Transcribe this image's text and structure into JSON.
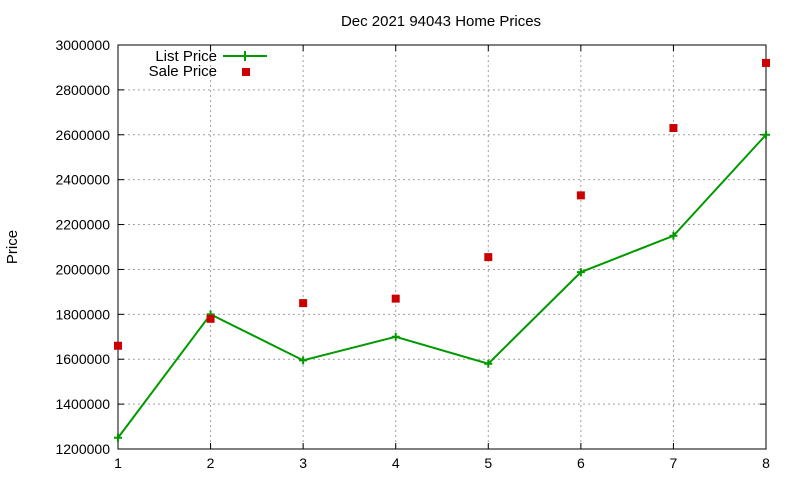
{
  "chart_data": {
    "type": "line",
    "title": "Dec 2021 94043 Home Prices",
    "xlabel": "",
    "ylabel": "Price",
    "x": [
      1,
      2,
      3,
      4,
      5,
      6,
      7,
      8
    ],
    "xlim": [
      1,
      8
    ],
    "ylim": [
      1200000,
      3000000
    ],
    "xticks": [
      "1",
      "2",
      "3",
      "4",
      "5",
      "6",
      "7",
      "8"
    ],
    "yticks": [
      "1200000",
      "1400000",
      "1600000",
      "1800000",
      "2000000",
      "2200000",
      "2400000",
      "2600000",
      "2800000",
      "3000000"
    ],
    "grid": true,
    "legend_position": "top-left",
    "series": [
      {
        "name": "List Price",
        "type": "line",
        "color": "#009900",
        "marker": "plus",
        "values": [
          1250000,
          1800000,
          1595000,
          1700000,
          1580000,
          1988000,
          2150000,
          2600000
        ]
      },
      {
        "name": "Sale Price",
        "type": "scatter",
        "color": "#cc0000",
        "marker": "square",
        "values": [
          1660000,
          1780000,
          1850000,
          1870000,
          2055000,
          2330000,
          2630000,
          2920000
        ]
      }
    ]
  }
}
